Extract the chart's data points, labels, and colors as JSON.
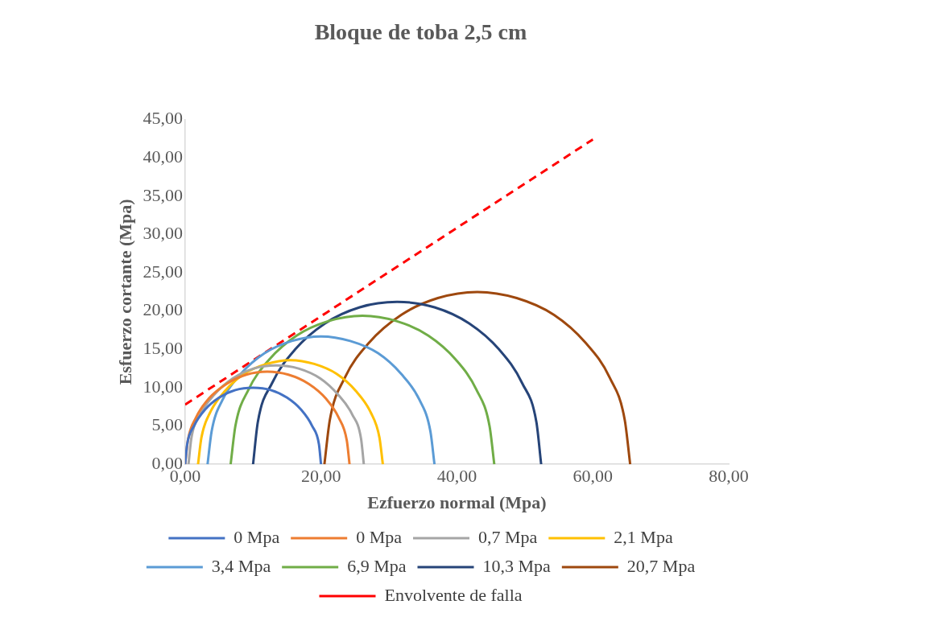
{
  "chart_data": {
    "type": "line",
    "title": "Bloque de toba 2,5 cm",
    "xlabel": "Ezfuerzo normal (Mpa)",
    "ylabel": "Esfuerzo cortante (Mpa)",
    "xlim": [
      0,
      80
    ],
    "xticks": [
      {
        "value": 0,
        "label": "0,00"
      },
      {
        "value": 20,
        "label": "20,00"
      },
      {
        "value": 40,
        "label": "40,00"
      },
      {
        "value": 60,
        "label": "60,00"
      },
      {
        "value": 80,
        "label": "80,00"
      }
    ],
    "ylim": [
      0,
      45
    ],
    "yticks": [
      {
        "value": 0,
        "label": "0,00"
      },
      {
        "value": 5,
        "label": "5,00"
      },
      {
        "value": 10,
        "label": "10,00"
      },
      {
        "value": 15,
        "label": "15,00"
      },
      {
        "value": 20,
        "label": "20,00"
      },
      {
        "value": 25,
        "label": "25,00"
      },
      {
        "value": 30,
        "label": "30,00"
      },
      {
        "value": 35,
        "label": "35,00"
      },
      {
        "value": 40,
        "label": "40,00"
      },
      {
        "value": 45,
        "label": "45,00"
      }
    ],
    "grid": false,
    "legend": "bottom",
    "marker": "none",
    "line_style": "solid",
    "series": [
      {
        "name": "0 Mpa",
        "color": "#4472c4",
        "x": [
          0,
          0.3,
          1.3,
          2.9,
          5.0,
          7.4,
          10,
          12.6,
          15.0,
          17.1,
          18.7,
          19.7,
          20
        ],
        "values": [
          0,
          2.6,
          5.0,
          7.1,
          8.7,
          9.7,
          10,
          9.7,
          8.7,
          7.1,
          5.0,
          2.6,
          0
        ]
      },
      {
        "name": "0 Mpa",
        "color": "#ed7d31",
        "x": [
          0,
          0.4,
          1.6,
          3.5,
          6.1,
          9.0,
          12.1,
          15.2,
          18.2,
          20.7,
          22.6,
          23.8,
          24.2
        ],
        "values": [
          0,
          3.1,
          6.1,
          8.6,
          10.5,
          11.7,
          12.1,
          11.7,
          10.5,
          8.6,
          6.1,
          3.1,
          0
        ]
      },
      {
        "name": "0,7 Mpa",
        "color": "#a5a5a5",
        "x": [
          0.5,
          0.9,
          2.2,
          4.3,
          7.0,
          10.1,
          13.4,
          16.7,
          19.9,
          22.5,
          24.6,
          25.9,
          26.3
        ],
        "values": [
          0,
          3.3,
          6.5,
          9.1,
          11.2,
          12.5,
          12.9,
          12.5,
          11.2,
          9.1,
          6.5,
          3.3,
          0
        ]
      },
      {
        "name": "2,1 Mpa",
        "color": "#ffc000",
        "x": [
          1.9,
          2.4,
          3.7,
          5.9,
          8.7,
          12.0,
          15.5,
          19.0,
          22.3,
          25.1,
          27.3,
          28.6,
          29.1
        ],
        "values": [
          0,
          3.5,
          6.8,
          9.6,
          11.8,
          13.1,
          13.6,
          13.1,
          11.8,
          9.6,
          6.8,
          3.5,
          0
        ]
      },
      {
        "name": "3,4 Mpa",
        "color": "#5b9bd5",
        "x": [
          3.3,
          3.9,
          5.5,
          8.2,
          11.7,
          15.7,
          20,
          24.3,
          28.4,
          31.8,
          34.5,
          36.1,
          36.7
        ],
        "values": [
          0,
          4.3,
          8.4,
          11.8,
          14.5,
          16.1,
          16.7,
          16.1,
          14.5,
          11.8,
          8.4,
          4.3,
          0
        ]
      },
      {
        "name": "6,9 Mpa",
        "color": "#70ad47",
        "x": [
          6.7,
          7.4,
          9.3,
          12.4,
          16.4,
          21.1,
          26.1,
          31.1,
          35.8,
          39.8,
          42.9,
          44.8,
          45.5
        ],
        "values": [
          0,
          5.0,
          9.7,
          13.7,
          16.8,
          18.7,
          19.4,
          18.7,
          16.8,
          13.7,
          9.7,
          5.0,
          0
        ]
      },
      {
        "name": "10,3 Mpa",
        "color": "#264478",
        "x": [
          10.0,
          10.7,
          12.8,
          16.2,
          20.6,
          25.7,
          31.2,
          36.7,
          41.8,
          46.2,
          49.6,
          51.7,
          52.4
        ],
        "values": [
          0,
          5.5,
          10.6,
          15.0,
          18.4,
          20.5,
          21.2,
          20.5,
          18.4,
          15.0,
          10.6,
          5.5,
          0
        ]
      },
      {
        "name": "20,7 Mpa",
        "color": "#9e480e",
        "x": [
          20.5,
          21.3,
          23.5,
          27.1,
          31.8,
          37.2,
          43,
          48.8,
          54.3,
          58.9,
          62.5,
          64.7,
          65.5
        ],
        "values": [
          0,
          5.8,
          11.3,
          15.9,
          19.5,
          21.7,
          22.5,
          21.7,
          19.5,
          15.9,
          11.3,
          5.8,
          0
        ]
      },
      {
        "name": "Envolvente de falla",
        "color": "#ff0000",
        "line_style": "dashed",
        "x": [
          0,
          60
        ],
        "values": [
          7.8,
          42.4
        ]
      }
    ]
  }
}
